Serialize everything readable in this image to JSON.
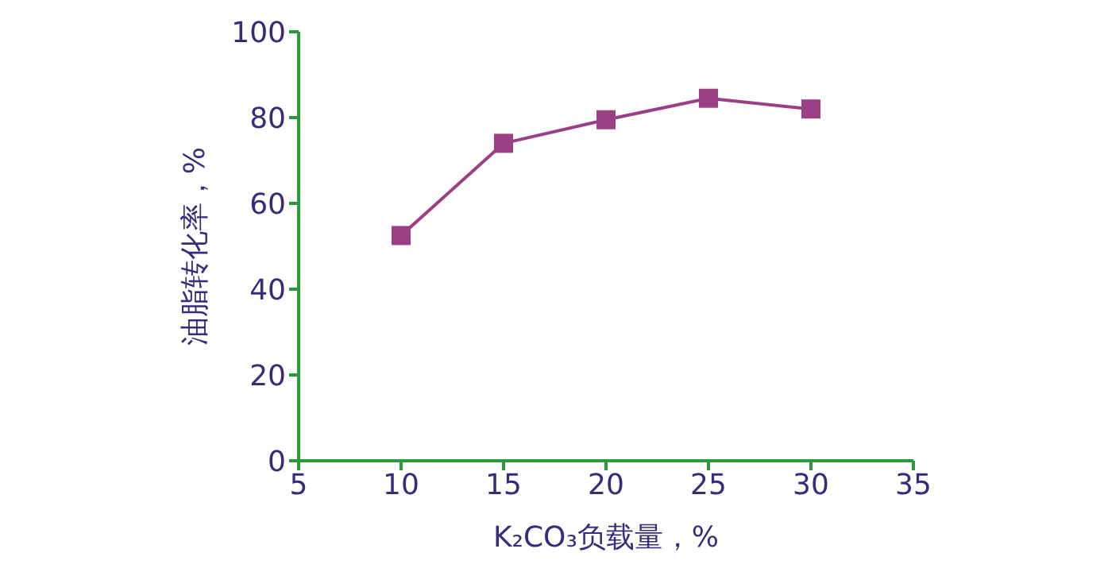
{
  "chart_data": {
    "type": "line",
    "xlabel": "K₂CO₃负载量，%",
    "ylabel": "油脂转化率，%",
    "x": [
      10,
      15,
      20,
      25,
      30
    ],
    "series": [
      {
        "color": "#9c3f84",
        "values": [
          52.5,
          74,
          79.5,
          84.5,
          82
        ]
      }
    ],
    "xlim": [
      5,
      35
    ],
    "xticks": [
      5,
      10,
      15,
      20,
      25,
      30,
      35
    ],
    "ylim": [
      0,
      100
    ],
    "yticks": [
      0,
      20,
      40,
      60,
      80,
      100
    ],
    "marker": "square",
    "grid": false,
    "legend": false
  }
}
